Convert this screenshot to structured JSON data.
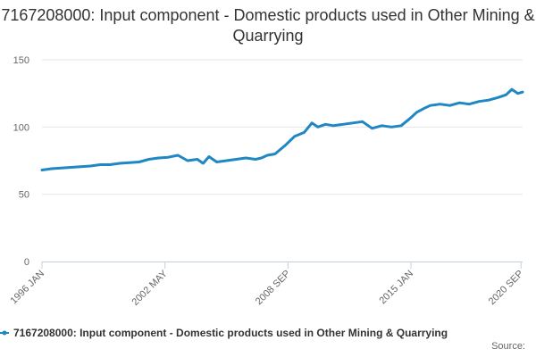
{
  "chart_data": {
    "type": "line",
    "title": "7167208000: Input component - Domestic products used in Other Mining & Quarrying",
    "xlabel": "",
    "ylabel": "",
    "ylim": [
      0,
      150
    ],
    "yticks": [
      0,
      50,
      100,
      150
    ],
    "xticks": [
      "1996 JAN",
      "2002 MAY",
      "2008 SEP",
      "2015 JAN",
      "2020 SEP"
    ],
    "grid": true,
    "legend_position": "bottom",
    "colors": {
      "series": "#1f87c3",
      "grid": "#e6e6e6",
      "axis": "#c0d0e0"
    },
    "series": [
      {
        "name": "7167208000: Input component - Domestic products used in Other Mining & Quarrying",
        "x": [
          1996.0,
          1996.5,
          1997.0,
          1997.5,
          1998.0,
          1998.5,
          1999.0,
          1999.5,
          2000.0,
          2000.5,
          2001.0,
          2001.5,
          2002.0,
          2002.5,
          2003.0,
          2003.5,
          2004.0,
          2004.3,
          2004.6,
          2005.0,
          2005.5,
          2006.0,
          2006.5,
          2007.0,
          2007.3,
          2007.6,
          2008.0,
          2008.5,
          2009.0,
          2009.5,
          2009.9,
          2010.2,
          2010.6,
          2011.0,
          2011.5,
          2012.0,
          2012.5,
          2013.0,
          2013.5,
          2014.0,
          2014.5,
          2015.0,
          2015.3,
          2015.7,
          2016.0,
          2016.5,
          2017.0,
          2017.5,
          2018.0,
          2018.5,
          2019.0,
          2019.5,
          2019.9,
          2020.2,
          2020.5,
          2020.75
        ],
        "values": [
          68,
          69,
          69.5,
          70,
          70.5,
          71,
          72,
          72,
          73,
          73.5,
          74,
          76,
          77,
          77.5,
          79,
          75,
          76,
          73,
          78,
          74,
          75,
          76,
          77,
          76,
          77,
          79,
          80,
          86,
          93,
          96,
          103,
          100,
          102,
          101,
          102,
          103,
          104,
          99,
          101,
          100,
          101,
          107,
          111,
          114,
          116,
          117,
          116,
          118,
          117,
          119,
          120,
          122,
          124,
          128,
          125,
          126
        ]
      }
    ],
    "source_label": "Source:"
  }
}
